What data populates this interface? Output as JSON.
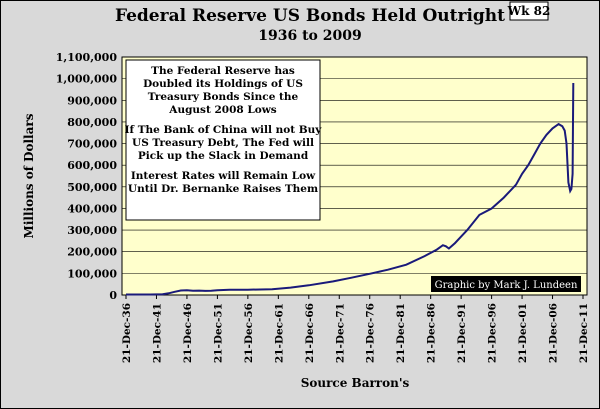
{
  "badge": "Wk 82",
  "chart_data": {
    "type": "line",
    "title": "Federal Reserve US Bonds Held Outright",
    "subtitle": "1936 to 2009",
    "ylabel": "Millions of Dollars",
    "xlabel": "Source Barron's",
    "ylim": [
      0,
      1100000
    ],
    "yticks": [
      "0",
      "100,000",
      "200,000",
      "300,000",
      "400,000",
      "500,000",
      "600,000",
      "700,000",
      "800,000",
      "900,000",
      "1,000,000",
      "1,100,000"
    ],
    "xticks": [
      "21-Dec-36",
      "21-Dec-41",
      "21-Dec-46",
      "21-Dec-51",
      "21-Dec-56",
      "21-Dec-61",
      "21-Dec-66",
      "21-Dec-71",
      "21-Dec-76",
      "21-Dec-81",
      "21-Dec-86",
      "21-Dec-91",
      "21-Dec-96",
      "21-Dec-01",
      "21-Dec-06",
      "21-Dec-11"
    ],
    "x_year_range": [
      1936,
      2011
    ],
    "grid": "horizontal",
    "plot_background": "#ffffcc",
    "line_color": "#1a1a7a",
    "series": [
      {
        "x": [
          1936,
          1940,
          1942,
          1943,
          1944,
          1945,
          1946,
          1947,
          1948,
          1949,
          1950,
          1951,
          1953,
          1956,
          1960,
          1963,
          1966,
          1970,
          1973,
          1976,
          1979,
          1982,
          1985,
          1987,
          1988,
          1988.5,
          1989,
          1990,
          1991,
          1992,
          1994,
          1996,
          1998,
          2000,
          2001,
          2002,
          2003,
          2004,
          2005,
          2006,
          2007,
          2007.6,
          2008.0,
          2008.3,
          2008.6,
          2008.9,
          2009.1,
          2009.3,
          2009.4
        ],
        "y": [
          2500,
          2500,
          3500,
          8000,
          15000,
          21000,
          22000,
          20000,
          20500,
          19000,
          19500,
          22000,
          24000,
          24500,
          27000,
          34000,
          45000,
          63000,
          80000,
          98000,
          117000,
          140000,
          180000,
          210000,
          230000,
          225000,
          215000,
          240000,
          270000,
          300000,
          370000,
          400000,
          450000,
          510000,
          560000,
          600000,
          650000,
          700000,
          740000,
          770000,
          790000,
          780000,
          760000,
          700000,
          520000,
          480000,
          490000,
          560000,
          980000
        ]
      }
    ],
    "annotations": [
      "The Federal Reserve has",
      "Doubled its Holdings of US",
      "Treasury Bonds Since the",
      "August 2008 Lows",
      "",
      "If The Bank of China will not Buy",
      "US Treasury Debt, The Fed will",
      "Pick up the Slack in Demand",
      "",
      "Interest Rates will Remain Low",
      "Until Dr. Bernanke Raises Them"
    ],
    "credit": "Graphic by Mark J. Lundeen"
  }
}
